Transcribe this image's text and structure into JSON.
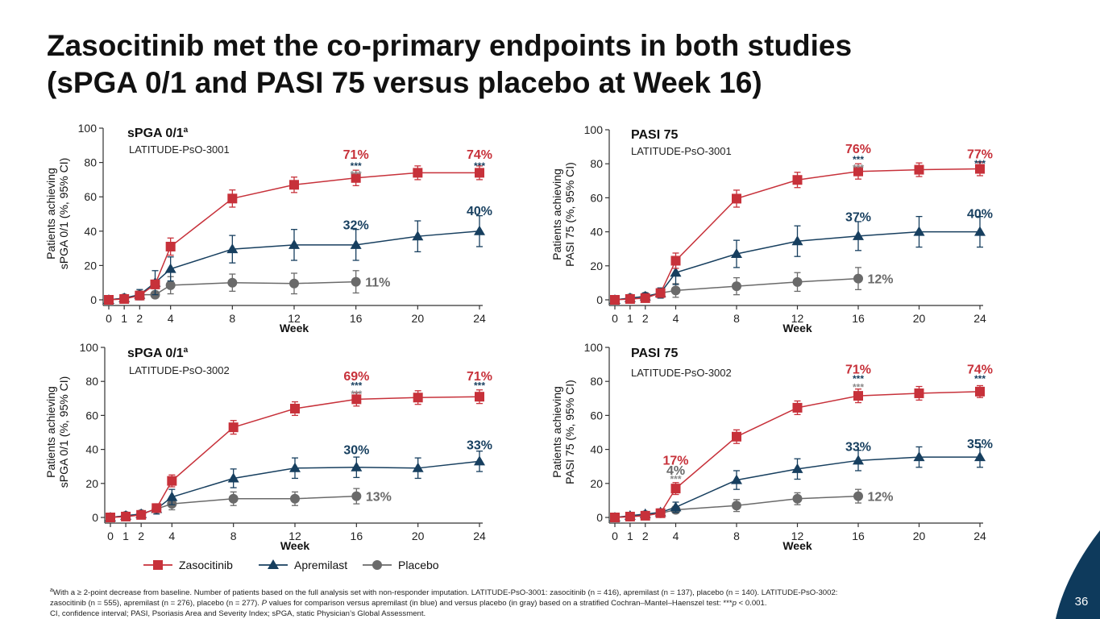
{
  "slide": {
    "title_line1": "Zasocitinib met the co-primary endpoints in both studies",
    "title_line2": "(sPGA 0/1 and PASI 75 versus placebo at Week 16)",
    "page_number": "36",
    "footnote": {
      "line1_marker": "a",
      "line1_text": "With a ≥ 2-point decrease from baseline. Number of patients based on the full analysis set with non-responder imputation. LATITUDE-PsO-3001: zasocitinib (n = 416), apremilast (n = 137), placebo (n = 140). LATITUDE-PsO-3002:",
      "line2_pre": "zasocitinib (n = 555), apremilast (n = 276), placebo (n = 277). ",
      "line2_italic": "P",
      "line2_post": " values for comparison versus apremilast (in blue) and versus placebo (in gray) based on a stratified Cochran–Mantel–Haenszel test: ***",
      "line2_italic2": "p",
      "line2_end": " < 0.001.",
      "line3": "CI, confidence interval; PASI, Psoriasis Area and Severity Index; sPGA, static Physician’s Global Assessment."
    }
  },
  "legend": [
    {
      "name": "Zasocitinib",
      "color": "#c7313a",
      "marker": "square"
    },
    {
      "name": "Apremilast",
      "color": "#173f5f",
      "marker": "triangle"
    },
    {
      "name": "Placebo",
      "color": "#6a6a6a",
      "marker": "circle"
    }
  ],
  "colors": {
    "zasocitinib": "#c7313a",
    "apremilast": "#173f5f",
    "placebo": "#6a6a6a",
    "sig_blue": "#173f5f",
    "sig_gray": "#8a8a8a",
    "corner": "#0e3a5c"
  },
  "chart_data": [
    {
      "type": "line",
      "title": "sPGA 0/1",
      "title_sup": "a",
      "subtitle": "LATITUDE-PsO-3001",
      "xlabel": "Week",
      "ylabel_line1": "Patients achieving",
      "ylabel_line2": "sPGA 0/1 (%, 95% CI)",
      "xticks": [
        0,
        1,
        2,
        4,
        8,
        12,
        16,
        20,
        24
      ],
      "yticks": [
        0,
        20,
        40,
        60,
        80,
        100
      ],
      "xlim": [
        0,
        24
      ],
      "ylim": [
        0,
        100
      ],
      "series": [
        {
          "name": "Zasocitinib",
          "x": [
            0,
            1,
            2,
            3,
            4,
            8,
            12,
            16,
            20,
            24
          ],
          "y": [
            0,
            0.5,
            2.5,
            9,
            31,
            59,
            67,
            71,
            74,
            74
          ],
          "err": [
            0,
            0.5,
            1.5,
            2.5,
            5,
            5,
            4.5,
            4.5,
            4,
            4
          ]
        },
        {
          "name": "Apremilast",
          "x": [
            0,
            1,
            2,
            3,
            4,
            8,
            12,
            16,
            20,
            24
          ],
          "y": [
            0,
            1,
            3,
            10,
            18,
            29.5,
            32,
            32,
            37,
            40
          ],
          "err": [
            0,
            1,
            3,
            7,
            7,
            8,
            9,
            9,
            9,
            9
          ]
        },
        {
          "name": "Placebo",
          "x": [
            0,
            1,
            2,
            3,
            4,
            8,
            12,
            16
          ],
          "y": [
            0,
            1,
            3,
            3,
            8.5,
            10,
            9.5,
            10.5
          ],
          "err": [
            0,
            1,
            2,
            2,
            5,
            5,
            6,
            6.5
          ]
        }
      ],
      "annotations": [
        {
          "text": "71%",
          "x": 16,
          "y": 85,
          "color": "#c7313a"
        },
        {
          "text": "***",
          "x": 16,
          "y": 78,
          "color": "#173f5f",
          "small": true
        },
        {
          "text": "***",
          "x": 16,
          "y": 73,
          "color": "#8a8a8a",
          "small": true
        },
        {
          "text": "74%",
          "x": 24,
          "y": 85,
          "color": "#c7313a"
        },
        {
          "text": "***",
          "x": 24,
          "y": 78,
          "color": "#173f5f",
          "small": true
        },
        {
          "text": "32%",
          "x": 16,
          "y": 44,
          "color": "#173f5f"
        },
        {
          "text": "40%",
          "x": 24,
          "y": 52,
          "color": "#173f5f"
        },
        {
          "text": "11%",
          "x": 16.5,
          "y": 10.5,
          "color": "#6a6a6a",
          "anchor": "start"
        }
      ]
    },
    {
      "type": "line",
      "title": "PASI 75",
      "title_sup": "",
      "subtitle": "LATITUDE-PsO-3001",
      "xlabel": "Week",
      "ylabel_line1": "Patients achieving",
      "ylabel_line2": "PASI 75 (%, 95% CI)",
      "xticks": [
        0,
        1,
        2,
        4,
        8,
        12,
        16,
        20,
        24
      ],
      "yticks": [
        0,
        20,
        40,
        60,
        80,
        100
      ],
      "xlim": [
        0,
        24
      ],
      "ylim": [
        0,
        100
      ],
      "series": [
        {
          "name": "Zasocitinib",
          "x": [
            0,
            1,
            2,
            3,
            4,
            8,
            12,
            16,
            20,
            24
          ],
          "y": [
            0,
            0.5,
            1,
            4,
            23,
            59.5,
            70.5,
            75.5,
            76.5,
            77
          ],
          "err": [
            0,
            0.5,
            1,
            2,
            4.5,
            5,
            4.5,
            4.5,
            4,
            4
          ]
        },
        {
          "name": "Apremilast",
          "x": [
            0,
            1,
            2,
            3,
            4,
            8,
            12,
            16,
            20,
            24
          ],
          "y": [
            0,
            1,
            2,
            4,
            16,
            27,
            34.5,
            37.5,
            40,
            40
          ],
          "err": [
            0,
            1,
            2,
            3,
            7,
            8,
            9,
            8.5,
            9,
            9
          ]
        },
        {
          "name": "Placebo",
          "x": [
            0,
            1,
            2,
            3,
            4,
            8,
            12,
            16
          ],
          "y": [
            0,
            1,
            2,
            4,
            5.5,
            8,
            10.5,
            12.5
          ],
          "err": [
            0,
            1,
            2,
            2,
            4,
            5,
            5.5,
            6.5
          ]
        }
      ],
      "annotations": [
        {
          "text": "76%",
          "x": 16,
          "y": 89,
          "color": "#c7313a"
        },
        {
          "text": "***",
          "x": 16,
          "y": 82.5,
          "color": "#173f5f",
          "small": true
        },
        {
          "text": "***",
          "x": 16,
          "y": 77.5,
          "color": "#8a8a8a",
          "small": true
        },
        {
          "text": "77%",
          "x": 24,
          "y": 86,
          "color": "#c7313a"
        },
        {
          "text": "***",
          "x": 24,
          "y": 80,
          "color": "#173f5f",
          "small": true
        },
        {
          "text": "37%",
          "x": 16,
          "y": 49,
          "color": "#173f5f"
        },
        {
          "text": "40%",
          "x": 24,
          "y": 51,
          "color": "#173f5f"
        },
        {
          "text": "12%",
          "x": 16.5,
          "y": 12.5,
          "color": "#6a6a6a",
          "anchor": "start"
        }
      ]
    },
    {
      "type": "line",
      "title": "sPGA 0/1",
      "title_sup": "a",
      "subtitle": "LATITUDE-PsO-3002",
      "xlabel": "Week",
      "ylabel_line1": "Patients achieving",
      "ylabel_line2": "sPGA 0/1 (%, 95% CI)",
      "xticks": [
        0,
        1,
        2,
        4,
        8,
        12,
        16,
        20,
        24
      ],
      "yticks": [
        0,
        20,
        40,
        60,
        80,
        100
      ],
      "xlim": [
        0,
        24
      ],
      "ylim": [
        0,
        100
      ],
      "series": [
        {
          "name": "Zasocitinib",
          "x": [
            0,
            1,
            2,
            3,
            4,
            8,
            12,
            16,
            20,
            24
          ],
          "y": [
            0,
            0.5,
            1.5,
            5.5,
            21.5,
            53,
            64,
            69.5,
            70.5,
            71
          ],
          "err": [
            0,
            0.5,
            1,
            2,
            3.5,
            4,
            4,
            4,
            4,
            4
          ]
        },
        {
          "name": "Apremilast",
          "x": [
            0,
            1,
            2,
            3,
            4,
            8,
            12,
            16,
            20,
            24
          ],
          "y": [
            0,
            1,
            2,
            5,
            12,
            23,
            29,
            29.5,
            29,
            33
          ],
          "err": [
            0,
            1,
            1.5,
            3,
            4.5,
            5.5,
            6,
            6,
            6,
            6
          ]
        },
        {
          "name": "Placebo",
          "x": [
            0,
            1,
            2,
            3,
            4,
            8,
            12,
            16
          ],
          "y": [
            0,
            1,
            2,
            5,
            8,
            11,
            11,
            12.5
          ],
          "err": [
            0,
            1,
            1,
            2,
            3.5,
            4,
            4,
            4.5
          ]
        }
      ],
      "annotations": [
        {
          "text": "69%",
          "x": 16,
          "y": 83.5,
          "color": "#c7313a"
        },
        {
          "text": "***",
          "x": 16,
          "y": 77.5,
          "color": "#173f5f",
          "small": true
        },
        {
          "text": "***",
          "x": 16,
          "y": 72.5,
          "color": "#8a8a8a",
          "small": true
        },
        {
          "text": "71%",
          "x": 24,
          "y": 83.5,
          "color": "#c7313a"
        },
        {
          "text": "***",
          "x": 24,
          "y": 77.5,
          "color": "#173f5f",
          "small": true
        },
        {
          "text": "30%",
          "x": 16,
          "y": 40,
          "color": "#173f5f"
        },
        {
          "text": "33%",
          "x": 24,
          "y": 43,
          "color": "#173f5f"
        },
        {
          "text": "13%",
          "x": 16.5,
          "y": 12.5,
          "color": "#6a6a6a",
          "anchor": "start"
        }
      ]
    },
    {
      "type": "line",
      "title": "PASI 75",
      "title_sup": "",
      "subtitle": "LATITUDE-PsO-3002",
      "xlabel": "Week",
      "ylabel_line1": "Patients achieving",
      "ylabel_line2": "PASI 75 (%, 95% CI)",
      "xticks": [
        0,
        1,
        2,
        4,
        8,
        12,
        16,
        20,
        24
      ],
      "yticks": [
        0,
        20,
        40,
        60,
        80,
        100
      ],
      "xlim": [
        0,
        24
      ],
      "ylim": [
        0,
        100
      ],
      "series": [
        {
          "name": "Zasocitinib",
          "x": [
            0,
            1,
            2,
            3,
            4,
            8,
            12,
            16,
            20,
            24
          ],
          "y": [
            0,
            0.5,
            1,
            2.5,
            17,
            47.5,
            64.5,
            71.5,
            73,
            74
          ],
          "err": [
            0,
            0.5,
            1,
            2,
            3.5,
            4,
            4,
            4,
            4,
            3.5
          ]
        },
        {
          "name": "Apremilast",
          "x": [
            0,
            1,
            2,
            3,
            4,
            8,
            12,
            16,
            20,
            24
          ],
          "y": [
            0,
            1,
            2,
            3,
            6,
            22,
            28.5,
            33.5,
            35.5,
            35.5
          ],
          "err": [
            0,
            1,
            1.5,
            2,
            3,
            5.5,
            6,
            6,
            6,
            6
          ]
        },
        {
          "name": "Placebo",
          "x": [
            0,
            1,
            2,
            3,
            4,
            8,
            12,
            16
          ],
          "y": [
            0,
            0.5,
            1.5,
            2.5,
            4.5,
            7,
            11,
            12.5
          ],
          "err": [
            0,
            0.5,
            1,
            1.5,
            2,
            3.5,
            3.5,
            4
          ]
        }
      ],
      "annotations": [
        {
          "text": "71%",
          "x": 16,
          "y": 87.5,
          "color": "#c7313a"
        },
        {
          "text": "***",
          "x": 16,
          "y": 81.5,
          "color": "#173f5f",
          "small": true
        },
        {
          "text": "***",
          "x": 16,
          "y": 76.5,
          "color": "#8a8a8a",
          "small": true
        },
        {
          "text": "74%",
          "x": 24,
          "y": 87.5,
          "color": "#c7313a"
        },
        {
          "text": "***",
          "x": 24,
          "y": 81.5,
          "color": "#173f5f",
          "small": true
        },
        {
          "text": "17%",
          "x": 4,
          "y": 34,
          "color": "#c7313a"
        },
        {
          "text": "4%",
          "x": 4,
          "y": 28,
          "color": "#6a6a6a"
        },
        {
          "text": "***",
          "x": 4,
          "y": 22.5,
          "color": "#8a8a8a",
          "small": true
        },
        {
          "text": "33%",
          "x": 16,
          "y": 42,
          "color": "#173f5f"
        },
        {
          "text": "35%",
          "x": 24,
          "y": 43.5,
          "color": "#173f5f"
        },
        {
          "text": "12%",
          "x": 16.5,
          "y": 12.5,
          "color": "#6a6a6a",
          "anchor": "start"
        }
      ]
    }
  ]
}
